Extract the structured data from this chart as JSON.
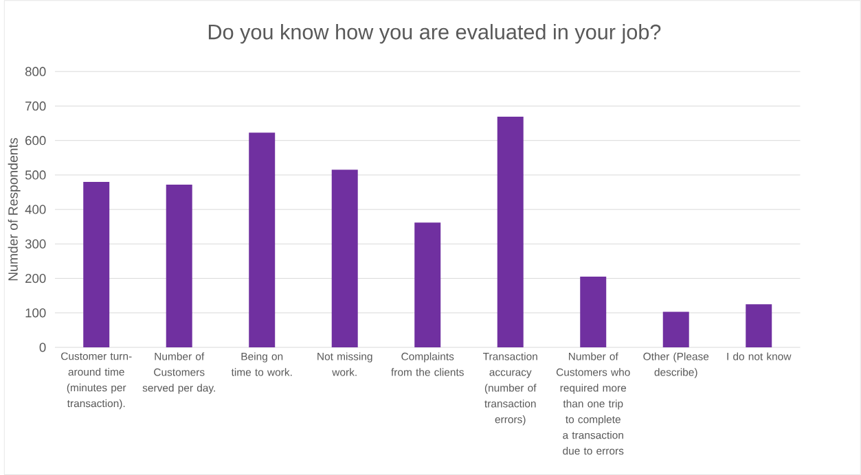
{
  "chart_data": {
    "type": "bar",
    "title": "Do you know how you are evaluated in your job?",
    "ylabel": "Numder of Respondents",
    "categories": [
      "Customer turn-around time (minutes per transaction).",
      "Number of Customers served per day.",
      "Being on time to work.",
      "Not missing work.",
      "Complaints from the clients",
      "Transaction accuracy (number of transaction errors)",
      "Number of Customers who required more than one trip to complete a transaction due to errors",
      "Other (Please describe)",
      "I do not know"
    ],
    "values": [
      480,
      472,
      623,
      515,
      362,
      669,
      205,
      103,
      125
    ],
    "color": "#7030a0",
    "ylim": [
      0,
      800
    ],
    "yticks": [
      0,
      100,
      200,
      300,
      400,
      500,
      600,
      700,
      800
    ],
    "grid": "y"
  }
}
